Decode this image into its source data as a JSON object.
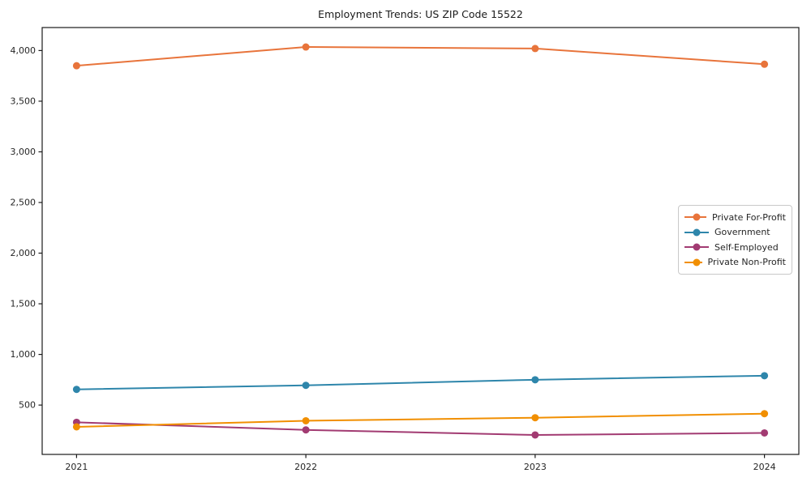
{
  "figure": {
    "background": "#ffffff",
    "text_color": "#262626",
    "spine_color": "#1a1a1a"
  },
  "chart_data": {
    "type": "line",
    "title": "Employment Trends: US ZIP Code 15522",
    "xlabel": "",
    "ylabel": "",
    "x": [
      2021,
      2022,
      2023,
      2024
    ],
    "x_tick_labels": [
      "2021",
      "2022",
      "2023",
      "2024"
    ],
    "y_ticks": [
      500,
      1000,
      1500,
      2000,
      2500,
      3000,
      3500,
      4000
    ],
    "y_tick_labels": [
      "500",
      "1,000",
      "1,500",
      "2,000",
      "2,500",
      "3,000",
      "3,500",
      "4,000"
    ],
    "xlim": [
      2020.85,
      2024.15
    ],
    "ylim": [
      13,
      4227
    ],
    "grid": false,
    "legend_position": "center-right",
    "series": [
      {
        "name": "Private For-Profit",
        "color": "#E8743B",
        "values": [
          3850,
          4035,
          4020,
          3865
        ]
      },
      {
        "name": "Government",
        "color": "#2E86AB",
        "values": [
          655,
          695,
          750,
          790
        ]
      },
      {
        "name": "Self-Employed",
        "color": "#A23B72",
        "values": [
          330,
          255,
          205,
          225
        ]
      },
      {
        "name": "Private Non-Profit",
        "color": "#F18F01",
        "values": [
          285,
          345,
          375,
          415
        ]
      }
    ]
  }
}
